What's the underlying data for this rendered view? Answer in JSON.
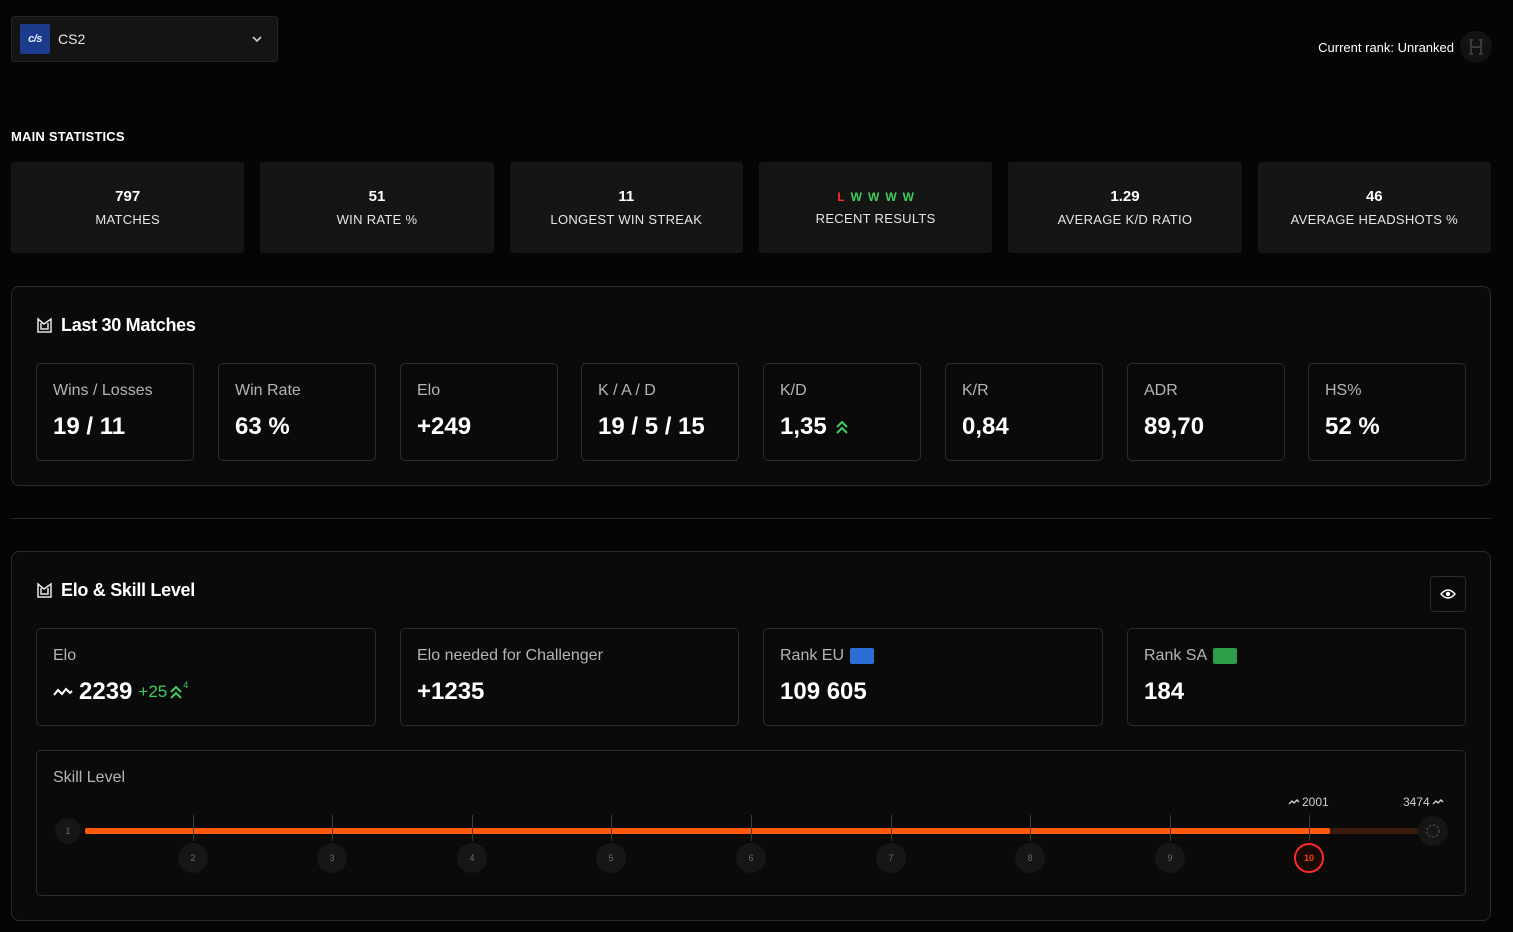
{
  "game_selector": {
    "logo_text": "c/s",
    "name": "CS2"
  },
  "rank": {
    "text": "Current rank: Unranked"
  },
  "main_statistics": {
    "title": "MAIN STATISTICS",
    "cards": [
      {
        "value": "797",
        "label": "MATCHES"
      },
      {
        "value": "51",
        "label": "WIN RATE %"
      },
      {
        "value": "11",
        "label": "LONGEST WIN STREAK"
      },
      {
        "value": "",
        "label": "RECENT RESULTS"
      },
      {
        "value": "1.29",
        "label": "AVERAGE K/D RATIO"
      },
      {
        "value": "46",
        "label": "AVERAGE HEADSHOTS %"
      }
    ],
    "recent_results": [
      "L",
      "W",
      "W",
      "W",
      "W"
    ]
  },
  "last30": {
    "title": "Last 30 Matches",
    "boxes": [
      {
        "label": "Wins / Losses",
        "value": "19 / 11"
      },
      {
        "label": "Win Rate",
        "value": "63 %"
      },
      {
        "label": "Elo",
        "value": "+249"
      },
      {
        "label": "K / A / D",
        "value": "19 / 5 / 15"
      },
      {
        "label": "K/D",
        "value": "1,35"
      },
      {
        "label": "K/R",
        "value": "0,84"
      },
      {
        "label": "ADR",
        "value": "89,70"
      },
      {
        "label": "HS%",
        "value": "52 %"
      }
    ]
  },
  "elo_skill": {
    "title": "Elo & Skill Level",
    "elo": {
      "label": "Elo",
      "value": "2239",
      "delta": "+25",
      "delta_sup": "4"
    },
    "challenger": {
      "label": "Elo needed for Challenger",
      "value": "+1235"
    },
    "rank_eu": {
      "label": "Rank EU",
      "value": "109 605"
    },
    "rank_sa": {
      "label": "Rank SA",
      "value": "184"
    },
    "skill": {
      "label": "Skill Level",
      "current_level": "10",
      "levels": [
        "1",
        "2",
        "3",
        "4",
        "5",
        "6",
        "7",
        "8",
        "9",
        "10"
      ],
      "marker_current": "2001",
      "marker_max": "3474",
      "progress": 0.922
    }
  },
  "colors": {
    "accent": "#ff5a0a",
    "win": "#3fcf5c",
    "loss": "#ff2a2a"
  }
}
